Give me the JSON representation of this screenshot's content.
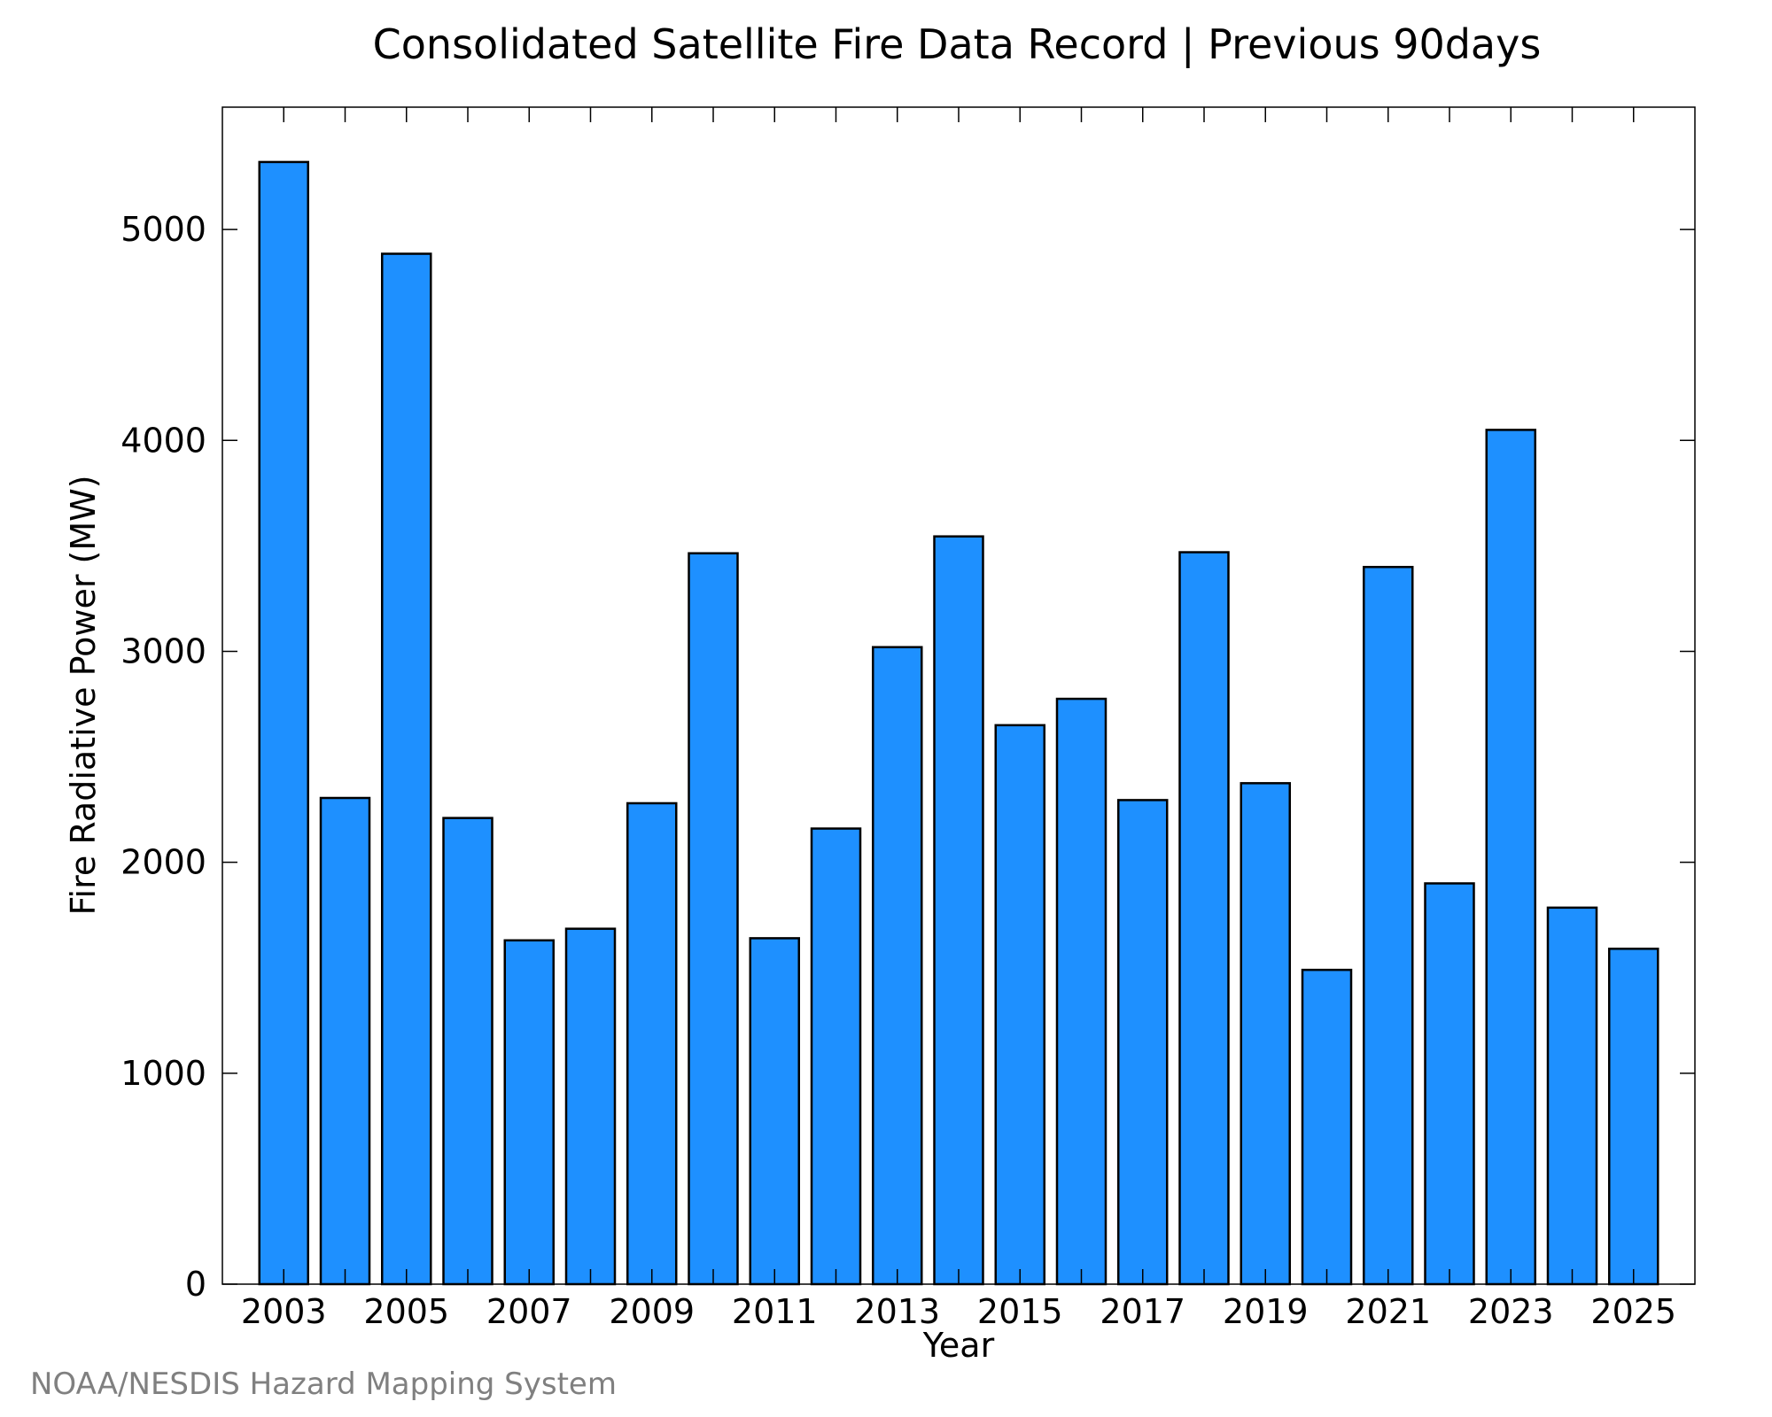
{
  "chart_data": {
    "type": "bar",
    "title": "Consolidated Satellite Fire Data Record | Previous 90days",
    "xlabel": "Year",
    "ylabel": "Fire Radiative Power (MW)",
    "credit": "NOAA/NESDIS Hazard Mapping System",
    "categories": [
      2003,
      2004,
      2005,
      2006,
      2007,
      2008,
      2009,
      2010,
      2011,
      2012,
      2013,
      2014,
      2015,
      2016,
      2017,
      2018,
      2019,
      2020,
      2021,
      2022,
      2023,
      2024,
      2025
    ],
    "values": [
      5320,
      2305,
      4885,
      2210,
      1630,
      1685,
      2280,
      3465,
      1640,
      2160,
      3020,
      3545,
      2650,
      2775,
      2295,
      3470,
      2375,
      1490,
      3400,
      1900,
      4050,
      1785,
      1590
    ],
    "xticks": [
      "2003",
      "2005",
      "2007",
      "2009",
      "2011",
      "2013",
      "2015",
      "2017",
      "2019",
      "2021",
      "2023",
      "2025"
    ],
    "yticks": [
      "0",
      "1000",
      "2000",
      "3000",
      "4000",
      "5000"
    ],
    "xlim": [
      2002.0,
      2026.0
    ],
    "ylim": [
      0,
      5580
    ],
    "bar_color": "#1E90FF",
    "edge_color": "#000000",
    "grid": false,
    "legend": "none"
  }
}
